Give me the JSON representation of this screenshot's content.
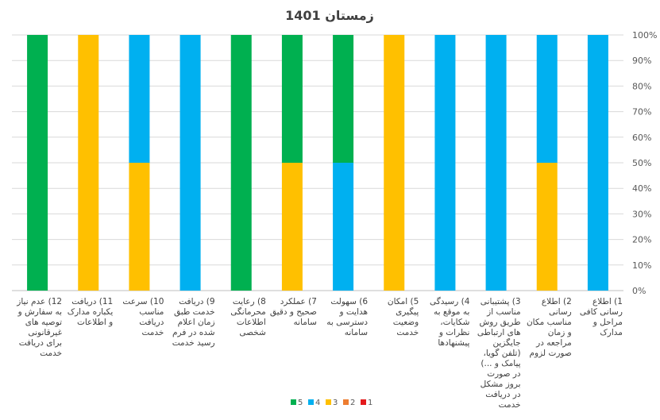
{
  "chart_data": {
    "type": "bar",
    "stacked": "percent",
    "title": "زمستان 1401",
    "yticks": [
      "0%",
      "10%",
      "20%",
      "30%",
      "40%",
      "50%",
      "60%",
      "70%",
      "80%",
      "90%",
      "100%"
    ],
    "ylim": [
      0,
      100
    ],
    "yaxis_position": "right",
    "legend_position": "bottom",
    "categories": [
      "1) اطلاع رسانی کافی مراحل و مدارک",
      "2) اطلاع رسانی مناسب مکان و زمان مراجعه در صورت لزوم",
      "3) پشتیبانی مناسب از طریق روش های ارتباطی جایگزین (تلفن گویا، پیامک و ...) در صورت بروز مشکل در دریافت خدمت",
      "4) رسیدگی به موقع به شکایات، نظرات و پیشنهادها",
      "5) امکان پیگیری وضعیت خدمت",
      "6) سهولت هدایت و دسترسی به سامانه",
      "7) عملکرد صحیح و دقیق سامانه",
      "8) رعایت محرمانگی اطلاعات شخصی",
      "9) دریافت خدمت طبق زمان اعلام شده در فرم رسید خدمت",
      "10) سرعت مناسب دریافت خدمت",
      "11) دریافت یکباره مدارک و اطلاعات",
      "12) عدم نیاز به سفارش و توصیه های غیرقانونی برای دریافت خدمت"
    ],
    "series": [
      {
        "name": "1",
        "color": "#e41a1c",
        "values": [
          0,
          0,
          0,
          0,
          0,
          0,
          0,
          0,
          0,
          0,
          0,
          0
        ]
      },
      {
        "name": "2",
        "color": "#ed7d31",
        "values": [
          0,
          0,
          0,
          0,
          0,
          0,
          0,
          0,
          0,
          0,
          0,
          0
        ]
      },
      {
        "name": "3",
        "color": "#ffc000",
        "values": [
          0,
          50,
          0,
          0,
          100,
          0,
          50,
          0,
          0,
          50,
          100,
          0
        ]
      },
      {
        "name": "4",
        "color": "#00b0f0",
        "values": [
          100,
          50,
          100,
          100,
          0,
          50,
          0,
          0,
          100,
          50,
          0,
          0
        ]
      },
      {
        "name": "5",
        "color": "#00b050",
        "values": [
          0,
          0,
          0,
          0,
          0,
          50,
          50,
          100,
          0,
          0,
          0,
          100
        ]
      }
    ]
  }
}
